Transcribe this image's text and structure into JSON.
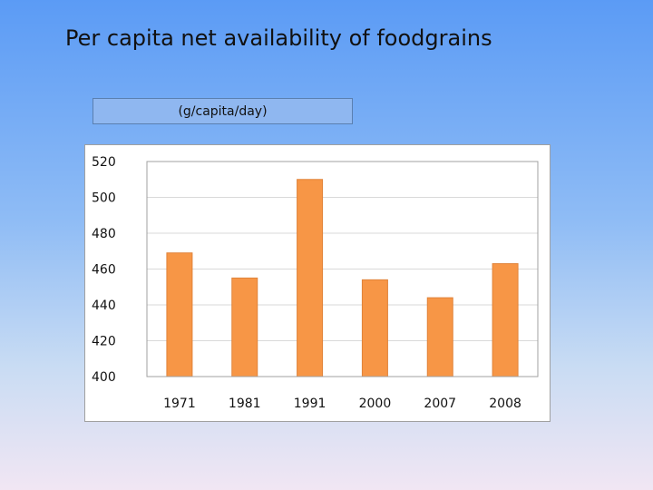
{
  "slide": {
    "title": "Per capita net availability of foodgrains",
    "unit_label": "(g/capita/day)"
  },
  "colors": {
    "bar_fill": "#f79646",
    "bar_edge": "#e0833a",
    "gridline": "#d9d9d9",
    "axis": "#a0a0a0"
  },
  "chart_data": {
    "type": "bar",
    "title": "",
    "xlabel": "",
    "ylabel": "",
    "categories": [
      "1971",
      "1981",
      "1991",
      "2000",
      "2007",
      "2008"
    ],
    "values": [
      469,
      455,
      510,
      454,
      444,
      463
    ],
    "ylim": [
      400,
      520
    ],
    "yticks": [
      400,
      420,
      440,
      460,
      480,
      500,
      520
    ],
    "grid": true,
    "legend": "none"
  }
}
